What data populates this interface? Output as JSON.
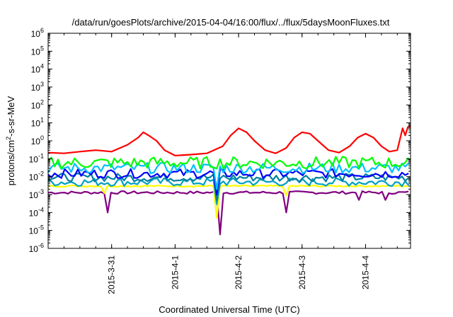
{
  "chart_data": {
    "type": "line",
    "title": "/data/run/goesPlots/archive/2015-04-04/16:00/flux/../flux/5daysMoonFluxes.txt",
    "xlabel": "Coordinated Universal Time (UTC)",
    "ylabel": "protons/cm2-s-sr-MeV",
    "ylabel_parts": {
      "main": "protons/cm",
      "sup": "2",
      "rest": "-s-sr-MeV"
    },
    "yscale": "log",
    "ylim": [
      1e-06,
      1000000.0
    ],
    "xlim": [
      "2015-03-30T00:00",
      "2015-04-04T17:00"
    ],
    "y_ticks": [
      {
        "base": "10",
        "exp": "-6",
        "value": 1e-06
      },
      {
        "base": "10",
        "exp": "-5",
        "value": 1e-05
      },
      {
        "base": "10",
        "exp": "-4",
        "value": 0.0001
      },
      {
        "base": "10",
        "exp": "-3",
        "value": 0.001
      },
      {
        "base": "10",
        "exp": "-2",
        "value": 0.01
      },
      {
        "base": "10",
        "exp": "-1",
        "value": 0.1
      },
      {
        "base": "10",
        "exp": "0",
        "value": 1
      },
      {
        "base": "10",
        "exp": "1",
        "value": 10
      },
      {
        "base": "10",
        "exp": "2",
        "value": 100
      },
      {
        "base": "10",
        "exp": "3",
        "value": 1000
      },
      {
        "base": "10",
        "exp": "4",
        "value": 10000
      },
      {
        "base": "10",
        "exp": "5",
        "value": 100000
      },
      {
        "base": "10",
        "exp": "6",
        "value": 1000000
      }
    ],
    "x_ticks": [
      {
        "label": "2015-3-31",
        "value": "2015-03-31T00:00"
      },
      {
        "label": "2015-4-1",
        "value": "2015-04-01T00:00"
      },
      {
        "label": "2015-4-2",
        "value": "2015-04-02T00:00"
      },
      {
        "label": "2015-4-3",
        "value": "2015-04-03T00:00"
      },
      {
        "label": "2015-4-4",
        "value": "2015-04-04T00:00"
      }
    ],
    "grid": false,
    "series": [
      {
        "color": "#ff0000",
        "points": [
          [
            "2015-03-30T00:00",
            0.22
          ],
          [
            "2015-03-30T06:00",
            0.2
          ],
          [
            "2015-03-30T12:00",
            0.25
          ],
          [
            "2015-03-30T18:00",
            0.3
          ],
          [
            "2015-03-31T00:00",
            0.25
          ],
          [
            "2015-03-31T06:00",
            0.6
          ],
          [
            "2015-03-31T10:00",
            1.5
          ],
          [
            "2015-03-31T12:00",
            3.0
          ],
          [
            "2015-03-31T14:00",
            2.0
          ],
          [
            "2015-03-31T17:00",
            1.0
          ],
          [
            "2015-03-31T20:00",
            0.3
          ],
          [
            "2015-04-01T00:00",
            0.15
          ],
          [
            "2015-04-01T06:00",
            0.17
          ],
          [
            "2015-04-01T12:00",
            0.2
          ],
          [
            "2015-04-01T18:00",
            0.5
          ],
          [
            "2015-04-01T21:00",
            2.0
          ],
          [
            "2015-04-02T00:00",
            5.0
          ],
          [
            "2015-04-02T03:00",
            3.0
          ],
          [
            "2015-04-02T06:00",
            1.0
          ],
          [
            "2015-04-02T10:00",
            0.3
          ],
          [
            "2015-04-02T14:00",
            0.2
          ],
          [
            "2015-04-02T18:00",
            0.4
          ],
          [
            "2015-04-02T21:00",
            1.5
          ],
          [
            "2015-04-03T00:00",
            3.0
          ],
          [
            "2015-04-03T03:00",
            2.5
          ],
          [
            "2015-04-03T06:00",
            1.0
          ],
          [
            "2015-04-03T10:00",
            0.3
          ],
          [
            "2015-04-03T14:00",
            0.22
          ],
          [
            "2015-04-03T18:00",
            0.5
          ],
          [
            "2015-04-03T21:00",
            1.5
          ],
          [
            "2015-04-04T00:00",
            2.5
          ],
          [
            "2015-04-04T03:00",
            1.5
          ],
          [
            "2015-04-04T06:00",
            0.5
          ],
          [
            "2015-04-04T09:00",
            0.25
          ],
          [
            "2015-04-04T12:00",
            0.3
          ],
          [
            "2015-04-04T14:00",
            5.0
          ],
          [
            "2015-04-04T15:00",
            2.0
          ],
          [
            "2015-04-04T16:00",
            6.0
          ],
          [
            "2015-04-04T17:00",
            6.0
          ]
        ]
      },
      {
        "color": "#00ff00",
        "base": 0.06,
        "jitter": 2.2,
        "dips": []
      },
      {
        "color": "#00bfff",
        "base": 0.03,
        "jitter": 2.0,
        "dips": [
          [
            "2015-04-01T16:00",
            0.002
          ]
        ]
      },
      {
        "color": "#0000ff",
        "base": 0.015,
        "jitter": 1.8,
        "dips": [
          [
            "2015-04-01T16:00",
            0.001
          ]
        ]
      },
      {
        "color": "#0080a0",
        "base": 0.009,
        "jitter": 1.7,
        "dips": [
          [
            "2015-04-01T16:00",
            0.0005
          ]
        ]
      },
      {
        "color": "#00a0c0",
        "base": 0.005,
        "jitter": 1.7,
        "dips": [
          [
            "2015-04-01T16:00",
            0.0003
          ]
        ]
      },
      {
        "color": "#ffff00",
        "base": 0.003,
        "jitter": 1.1,
        "dips": [
          [
            "2015-03-30T21:00",
            0.0012
          ],
          [
            "2015-04-01T16:00",
            5e-05
          ],
          [
            "2015-04-02T18:00",
            0.0009
          ]
        ]
      },
      {
        "color": "#800080",
        "base": 0.0013,
        "jitter": 1.2,
        "dips": [
          [
            "2015-03-30T22:00",
            0.0001
          ],
          [
            "2015-04-01T16:30",
            6e-06
          ],
          [
            "2015-04-02T18:00",
            0.0001
          ],
          [
            "2015-04-03T21:00",
            0.0005
          ],
          [
            "2015-04-04T08:00",
            0.0005
          ]
        ]
      }
    ]
  }
}
